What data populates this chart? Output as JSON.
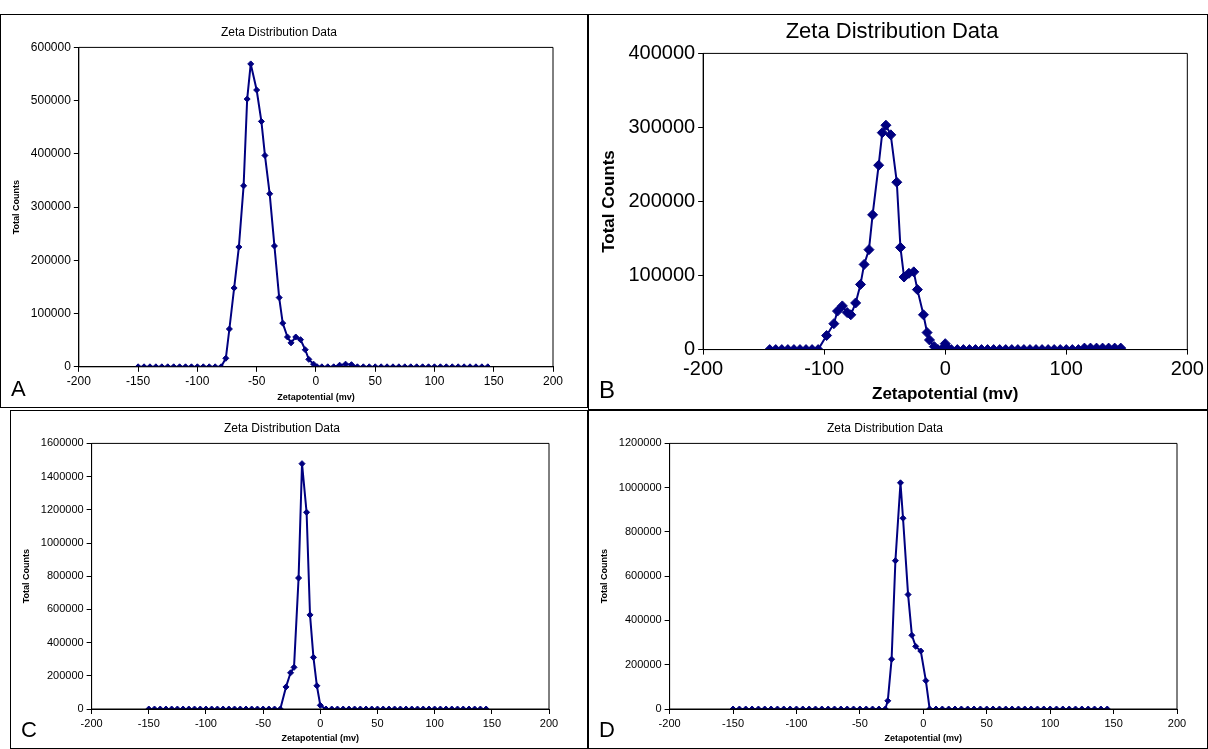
{
  "chart_data": [
    {
      "type": "line",
      "title": "Zeta Distribution Data",
      "xlabel": "Zetapotential (mv)",
      "ylabel": "Total Counts",
      "color": "#000080",
      "marker": "diamond",
      "line_style": "solid",
      "grid": false,
      "legend": false,
      "x": [
        -150,
        -145,
        -140,
        -135,
        -130,
        -125,
        -120,
        -115,
        -110,
        -105,
        -100,
        -95,
        -90,
        -85,
        -80,
        -76,
        -73,
        -69,
        -65,
        -61,
        -58,
        -55,
        -50,
        -46,
        -43,
        -39,
        -35,
        -31,
        -28,
        -24,
        -21,
        -17,
        -13,
        -9,
        -6,
        -2,
        1,
        5,
        10,
        15,
        20,
        25,
        30,
        35,
        40,
        45,
        50,
        55,
        60,
        65,
        70,
        75,
        80,
        85,
        90,
        95,
        100,
        105,
        110,
        115,
        120,
        125,
        130,
        135,
        140,
        145
      ],
      "values": [
        0,
        0,
        0,
        0,
        0,
        0,
        0,
        0,
        0,
        0,
        0,
        0,
        0,
        0,
        0,
        16000,
        71000,
        148000,
        225000,
        340000,
        503000,
        569000,
        520000,
        461000,
        397000,
        325000,
        227000,
        130000,
        82000,
        56000,
        45000,
        56000,
        51000,
        32000,
        14000,
        5000,
        0,
        0,
        0,
        0,
        3000,
        5000,
        4000,
        0,
        0,
        0,
        0,
        0,
        0,
        0,
        0,
        0,
        0,
        0,
        0,
        0,
        0,
        0,
        0,
        0,
        0,
        0,
        0,
        0,
        0,
        0
      ],
      "xlim": [
        -200,
        200
      ],
      "xticks": [
        -200,
        -150,
        -100,
        -50,
        0,
        50,
        100,
        150,
        200
      ],
      "ylim": [
        0,
        600000
      ],
      "yticks": [
        0,
        100000,
        200000,
        300000,
        400000,
        500000,
        600000
      ],
      "annotations": [
        "A"
      ]
    },
    {
      "type": "line",
      "title": "Zeta Distribution Data",
      "xlabel": "Zetapotential (mv)",
      "ylabel": "Total Counts",
      "color": "#000080",
      "marker": "diamond",
      "line_style": "solid",
      "grid": false,
      "legend": false,
      "x": [
        -145,
        -140,
        -135,
        -130,
        -125,
        -120,
        -115,
        -110,
        -105,
        -98,
        -92,
        -89,
        -85,
        -81,
        -78,
        -74,
        -70,
        -67,
        -63,
        -60,
        -55,
        -52,
        -49,
        -45,
        -40,
        -37,
        -34,
        -30,
        -26,
        -23,
        -18,
        -15,
        -13,
        -9,
        -6,
        -3,
        0,
        3,
        5,
        10,
        15,
        20,
        25,
        30,
        35,
        40,
        45,
        50,
        55,
        60,
        65,
        70,
        75,
        80,
        85,
        90,
        95,
        100,
        105,
        110,
        115,
        120,
        125,
        130,
        135,
        140,
        145
      ],
      "values": [
        0,
        0,
        0,
        0,
        0,
        0,
        0,
        0,
        0,
        19000,
        35000,
        52000,
        59000,
        50000,
        47000,
        63000,
        88000,
        115000,
        135000,
        182000,
        249000,
        293000,
        303000,
        290000,
        226000,
        138000,
        98000,
        103000,
        105000,
        81000,
        47000,
        23000,
        13000,
        4000,
        0,
        0,
        8000,
        0,
        0,
        0,
        0,
        0,
        0,
        0,
        0,
        0,
        0,
        0,
        0,
        0,
        0,
        0,
        0,
        0,
        0,
        0,
        0,
        0,
        0,
        0,
        2000,
        2000,
        2000,
        2000,
        2000,
        2000,
        2000
      ],
      "xlim": [
        -200,
        200
      ],
      "xticks": [
        -200,
        -100,
        0,
        100,
        200
      ],
      "ylim": [
        0,
        400000
      ],
      "yticks": [
        0,
        100000,
        200000,
        300000,
        400000
      ],
      "annotations": [
        "B"
      ]
    },
    {
      "type": "line",
      "title": "Zeta Distribution Data",
      "xlabel": "Zetapotential (mv)",
      "ylabel": "Total Counts",
      "color": "#000080",
      "marker": "diamond",
      "line_style": "solid",
      "grid": false,
      "legend": false,
      "x": [
        -150,
        -145,
        -140,
        -135,
        -130,
        -125,
        -120,
        -115,
        -110,
        -105,
        -100,
        -95,
        -90,
        -85,
        -80,
        -75,
        -70,
        -65,
        -60,
        -55,
        -50,
        -45,
        -40,
        -35,
        -30,
        -26,
        -23,
        -19,
        -16,
        -12,
        -9,
        -6,
        -3,
        0,
        5,
        10,
        15,
        20,
        25,
        30,
        35,
        40,
        45,
        50,
        55,
        60,
        65,
        70,
        75,
        80,
        85,
        90,
        95,
        100,
        105,
        110,
        115,
        120,
        125,
        130,
        135,
        140,
        145
      ],
      "values": [
        0,
        0,
        0,
        0,
        0,
        0,
        0,
        0,
        0,
        0,
        0,
        0,
        0,
        0,
        0,
        0,
        0,
        0,
        0,
        0,
        0,
        0,
        0,
        0,
        133000,
        218000,
        251000,
        789000,
        1478000,
        1185000,
        567000,
        311000,
        140000,
        22000,
        0,
        0,
        0,
        0,
        0,
        0,
        0,
        0,
        0,
        0,
        0,
        0,
        0,
        0,
        0,
        0,
        0,
        0,
        0,
        0,
        0,
        0,
        0,
        0,
        0,
        0,
        0,
        0,
        0
      ],
      "xlim": [
        -200,
        200
      ],
      "xticks": [
        -200,
        -150,
        -100,
        -50,
        0,
        50,
        100,
        150,
        200
      ],
      "ylim": [
        0,
        1600000
      ],
      "yticks": [
        0,
        200000,
        400000,
        600000,
        800000,
        1000000,
        1200000,
        1400000,
        1600000
      ],
      "annotations": [
        "C"
      ]
    },
    {
      "type": "line",
      "title": "Zeta Distribution Data",
      "xlabel": "Zetapotential (mv)",
      "ylabel": "Total Counts",
      "color": "#000080",
      "marker": "diamond",
      "line_style": "solid",
      "grid": false,
      "legend": false,
      "x": [
        -150,
        -145,
        -140,
        -135,
        -130,
        -125,
        -120,
        -115,
        -110,
        -105,
        -100,
        -95,
        -90,
        -85,
        -80,
        -75,
        -70,
        -65,
        -60,
        -55,
        -50,
        -45,
        -40,
        -35,
        -30,
        -28,
        -25,
        -22,
        -18,
        -16,
        -12,
        -9,
        -6,
        -2,
        2,
        5,
        10,
        15,
        20,
        25,
        30,
        35,
        40,
        45,
        50,
        55,
        60,
        65,
        70,
        75,
        80,
        85,
        90,
        95,
        100,
        105,
        110,
        115,
        120,
        125,
        130,
        135,
        140,
        145
      ],
      "values": [
        0,
        0,
        0,
        0,
        0,
        0,
        0,
        0,
        0,
        0,
        0,
        0,
        0,
        0,
        0,
        0,
        0,
        0,
        0,
        0,
        0,
        0,
        0,
        0,
        0,
        37000,
        225000,
        670000,
        1022000,
        862000,
        517000,
        333000,
        283000,
        262000,
        128000,
        0,
        0,
        0,
        0,
        0,
        0,
        0,
        0,
        0,
        0,
        0,
        0,
        0,
        0,
        0,
        0,
        0,
        0,
        0,
        0,
        0,
        0,
        0,
        0,
        0,
        0,
        0,
        0,
        0
      ],
      "xlim": [
        -200,
        200
      ],
      "xticks": [
        -200,
        -150,
        -100,
        -50,
        0,
        50,
        100,
        150,
        200
      ],
      "ylim": [
        0,
        1200000
      ],
      "yticks": [
        0,
        200000,
        400000,
        600000,
        800000,
        1000000,
        1200000
      ],
      "annotations": [
        "D"
      ]
    }
  ]
}
